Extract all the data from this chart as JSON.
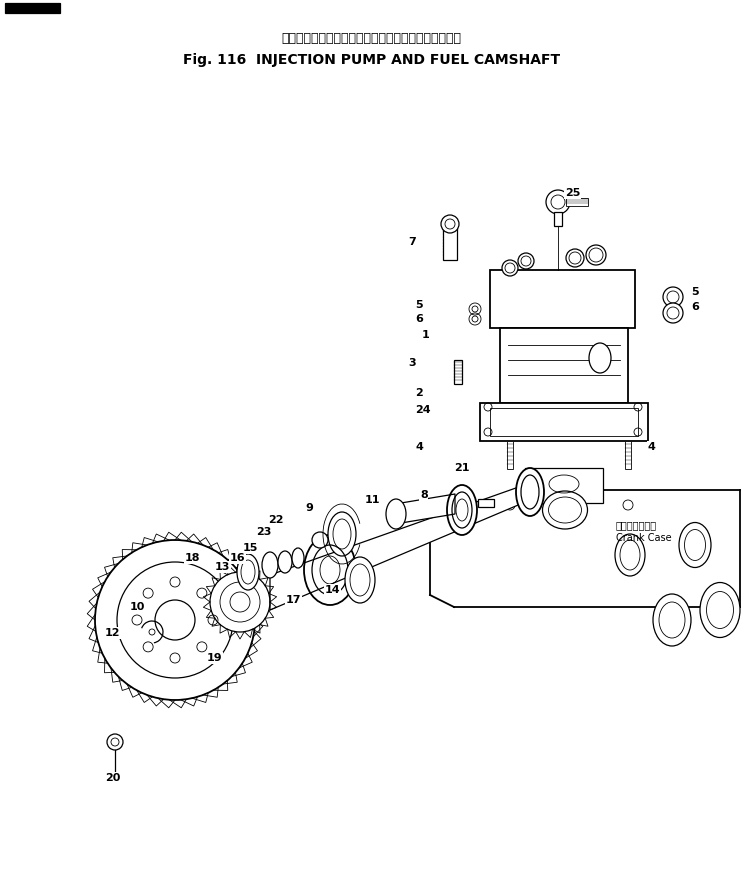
{
  "title_japanese": "インジェクションポンプおよびフュエルカムシャフト",
  "title_english": "Fig. 116  INJECTION PUMP AND FUEL CAMSHAFT",
  "bg_color": "#ffffff",
  "line_color": "#000000",
  "label_color": "#000000",
  "crank_case_japanese": "クランクケース",
  "crank_case_english": "Crank Case",
  "figsize": [
    7.43,
    8.76
  ],
  "dpi": 100
}
